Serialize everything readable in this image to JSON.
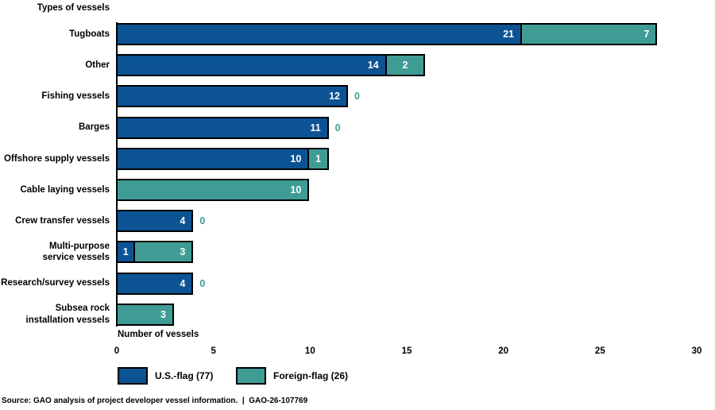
{
  "chart_data": {
    "type": "bar",
    "orientation": "horizontal",
    "stacked": true,
    "title": "Types of vessels",
    "xlabel": "Number of vessels",
    "xlim": [
      0,
      30
    ],
    "xticks": [
      0,
      5,
      10,
      15,
      20,
      25,
      30
    ],
    "grid": false,
    "categories": [
      "Tugboats",
      "Other",
      "Fishing vessels",
      "Barges",
      "Offshore supply vessels",
      "Cable laying vessels",
      "Crew transfer vessels",
      "Multi-purpose\nservice vessels",
      "Research/survey vessels",
      "Subsea rock\ninstallation vessels"
    ],
    "series": [
      {
        "name": "U.S.-flag (77)",
        "color": "#0C5394",
        "values": [
          21,
          14,
          12,
          11,
          10,
          0,
          4,
          1,
          4,
          0
        ],
        "show_zero_label": false
      },
      {
        "name": "Foreign-flag (26)",
        "color": "#3F9C95",
        "values": [
          7,
          2,
          0,
          0,
          1,
          10,
          0,
          3,
          0,
          3
        ],
        "show_zero_label": true
      }
    ],
    "totals": [
      28,
      16,
      12,
      11,
      11,
      10,
      4,
      4,
      4,
      3
    ],
    "value_label_color": "#ffffff",
    "legend_position": "bottom"
  },
  "legend": {
    "entries": [
      {
        "label": "U.S.-flag (77)",
        "color": "#0C5394"
      },
      {
        "label": "Foreign-flag (26)",
        "color": "#3F9C95"
      }
    ]
  },
  "source": {
    "text": "Source: GAO analysis of project developer vessel information.  |  GAO-26-107769"
  }
}
